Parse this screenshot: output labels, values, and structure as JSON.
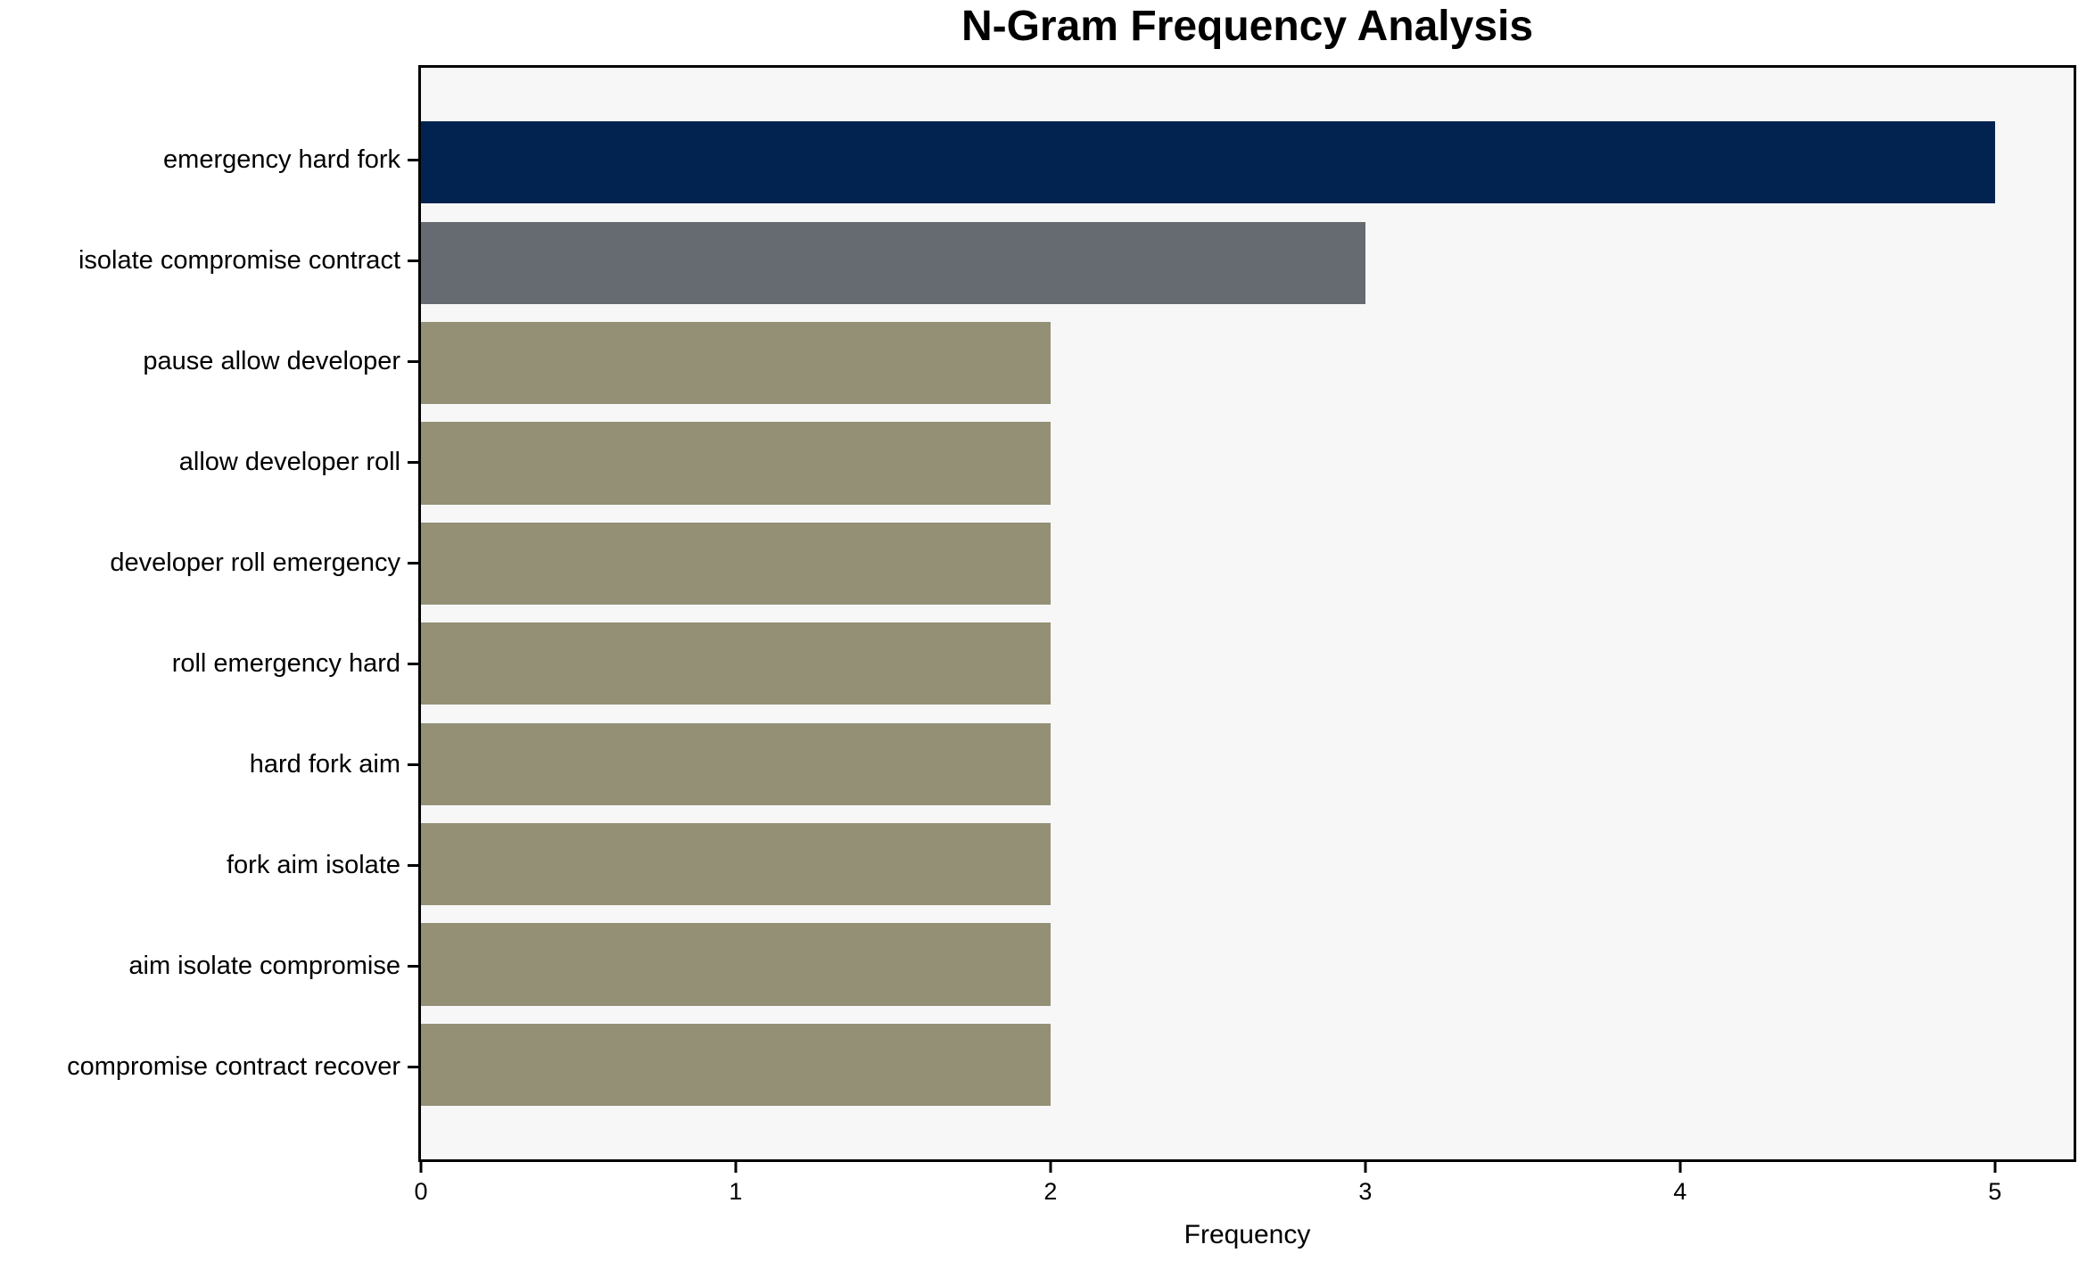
{
  "chart_data": {
    "type": "bar",
    "orientation": "horizontal",
    "title": "N-Gram Frequency Analysis",
    "xlabel": "Frequency",
    "ylabel": "",
    "categories": [
      "emergency hard fork",
      "isolate compromise contract",
      "pause allow developer",
      "allow developer roll",
      "developer roll emergency",
      "roll emergency hard",
      "hard fork aim",
      "fork aim isolate",
      "aim isolate compromise",
      "compromise contract recover"
    ],
    "values": [
      5,
      3,
      2,
      2,
      2,
      2,
      2,
      2,
      2,
      2
    ],
    "bar_colors": [
      "#022350",
      "#666a71",
      "#949076",
      "#949076",
      "#949076",
      "#949076",
      "#949076",
      "#949076",
      "#949076",
      "#949076"
    ],
    "xticks": [
      0,
      1,
      2,
      3,
      4,
      5
    ],
    "xlim": [
      0,
      5.25
    ],
    "grid": false,
    "legend": null,
    "colors": {
      "plot_background": "#f7f7f7",
      "figure_background": "#ffffff",
      "spine": "#000000",
      "text": "#000000"
    }
  }
}
